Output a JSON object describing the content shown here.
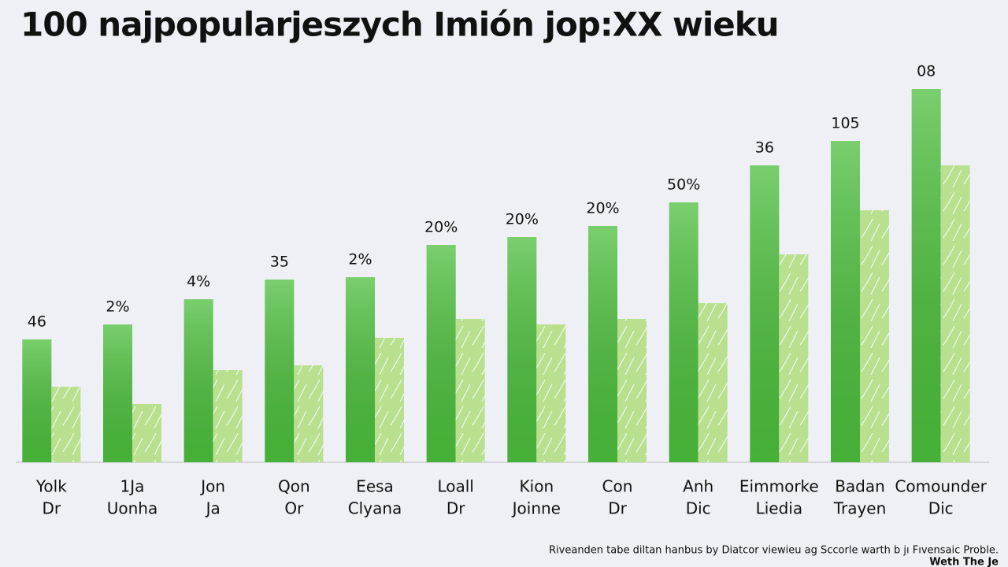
{
  "chart_data": {
    "type": "bar",
    "title": "100 najpopularjeszych Imión jop:XX wieku",
    "categories": [
      [
        "Yolk",
        "Dr"
      ],
      [
        "1Ja",
        "Uonha"
      ],
      [
        "Jon",
        "Ja"
      ],
      [
        "Qon",
        "Or"
      ],
      [
        "Eesa",
        "Clyana"
      ],
      [
        "Loall",
        "Dr"
      ],
      [
        "Kion",
        "Joinne"
      ],
      [
        "Con",
        "Dr"
      ],
      [
        "Anh",
        "Dic"
      ],
      [
        "Eimmorke",
        "Liedia"
      ],
      [
        "Badan",
        "Trayen"
      ],
      [
        "Comounder",
        "Dic"
      ]
    ],
    "series": [
      {
        "color": "#4cbf3c",
        "values": [
          156,
          175,
          207,
          232,
          235,
          276,
          286,
          300,
          330,
          377,
          408,
          474
        ]
      },
      {
        "color": "#b8e08e",
        "values": [
          96,
          74,
          117,
          123,
          158,
          182,
          175,
          182,
          202,
          264,
          320,
          377
        ]
      }
    ],
    "annotations": [
      "46",
      "2%",
      "4%",
      "35",
      "2%",
      "20%",
      "20%",
      "20%",
      "50%",
      "36",
      "105",
      "08"
    ],
    "ylim": [
      0,
      500
    ],
    "footnote": [
      "Riveanden tabe diltan hanbus by Diatcor viewieu ag Sccorle warth b jı Fıvensaic Proble.",
      "Weth The Je"
    ]
  }
}
